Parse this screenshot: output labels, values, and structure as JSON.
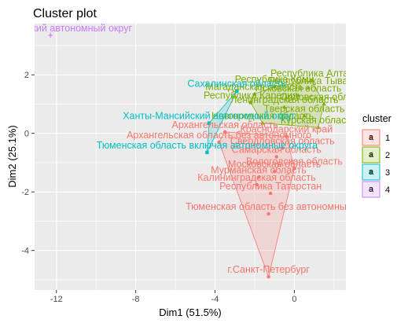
{
  "chart_data": {
    "type": "scatter",
    "title": "Cluster plot",
    "xlabel": "Dim1 (51.5%)",
    "ylabel": "Dim2 (25.1%)",
    "xlim": [
      -13.1,
      2.6
    ],
    "ylim": [
      -5.35,
      3.75
    ],
    "x_ticks": [
      -12,
      -8,
      -4,
      0
    ],
    "y_ticks": [
      -4,
      -2,
      0,
      2
    ],
    "grid": true,
    "legend": {
      "title": "cluster",
      "position": "right",
      "entries": [
        "1",
        "2",
        "3",
        "4"
      ]
    },
    "colors": {
      "1": "#f8766d",
      "2": "#7cae00",
      "3": "#00bfc4",
      "4": "#c77cff"
    },
    "clusters": [
      {
        "name": "1",
        "points": [
          {
            "x": -1.3,
            "y": -4.9,
            "label": "г.Санкт-Петербург"
          },
          {
            "x": -1.3,
            "y": -2.75,
            "label": "Тюменская область без автономных"
          },
          {
            "x": -1.2,
            "y": -2.05,
            "label": "Республика Татарстан"
          },
          {
            "x": -3.8,
            "y": -0.3,
            "label": "Архангельская область без автономного"
          },
          {
            "x": -3.5,
            "y": 0.05,
            "label": "Архангельская область"
          },
          {
            "x": -1.8,
            "y": -1.5,
            "label": "Мурманская область"
          },
          {
            "x": -1.9,
            "y": -1.75,
            "label": "Калининградская область"
          },
          {
            "x": -1.0,
            "y": -1.3,
            "label": "Московская область"
          },
          {
            "x": -0.9,
            "y": -0.8,
            "label": "Самарская область"
          },
          {
            "x": -0.6,
            "y": -0.5,
            "label": "Свердловская область"
          },
          {
            "x": 0.0,
            "y": -1.2,
            "label": "Вологодская область"
          },
          {
            "x": -0.4,
            "y": -0.1,
            "label": "Краснодарский край"
          }
        ]
      },
      {
        "name": "2",
        "points": [
          {
            "x": -2.0,
            "y": 1.35,
            "label": "Магаданская область"
          },
          {
            "x": -2.2,
            "y": 1.05,
            "label": "Республика Карелия"
          },
          {
            "x": -1.0,
            "y": 1.6,
            "label": "Республика Коми"
          },
          {
            "x": -1.6,
            "y": 0.35,
            "label": "Новгородская область"
          },
          {
            "x": -0.5,
            "y": 0.9,
            "label": "Ленинградская область"
          },
          {
            "x": 0.2,
            "y": 1.3,
            "label": "Псковская область"
          },
          {
            "x": 0.5,
            "y": 0.6,
            "label": "Тверская область"
          },
          {
            "x": 0.9,
            "y": 1.8,
            "label": "Республика Алтай"
          },
          {
            "x": 1.2,
            "y": 0.2,
            "label": "Курская область"
          },
          {
            "x": 1.5,
            "y": 1.0,
            "label": "Орловская область"
          },
          {
            "x": 0.7,
            "y": 1.55,
            "label": "Республика Тыва"
          }
        ]
      },
      {
        "name": "3",
        "points": [
          {
            "x": -4.3,
            "y": 0.35,
            "label": "Ханты-Мансийский автономный округ"
          },
          {
            "x": -2.9,
            "y": 1.45,
            "label": "Сахалинская область"
          },
          {
            "x": -4.4,
            "y": -0.65,
            "label": "Тюменская область включая автономные округа"
          }
        ]
      },
      {
        "name": "4",
        "points": [
          {
            "x": -12.3,
            "y": 3.35,
            "label": "Ямало-Ненецкий автономный округ"
          }
        ]
      }
    ]
  }
}
